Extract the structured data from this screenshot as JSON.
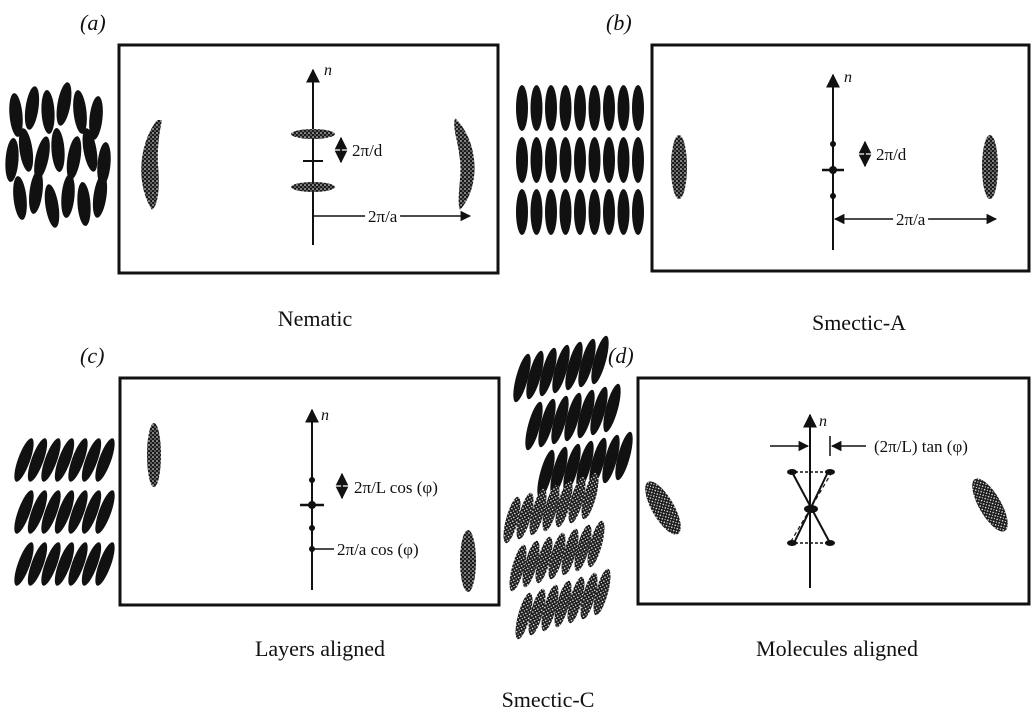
{
  "panels": {
    "a": {
      "letter": "(a)",
      "caption": "Nematic",
      "d_label": "2π/d",
      "a_label": "2π/a",
      "axis_label": "n"
    },
    "b": {
      "letter": "(b)",
      "caption": "Smectic-A",
      "d_label": "2π/d",
      "a_label": "2π/a",
      "axis_label": "n"
    },
    "c": {
      "letter": "(c)",
      "caption": "Layers aligned",
      "L_label": "2π/L cos (φ)",
      "a_label": "2π/a cos (φ)",
      "axis_label": "n"
    },
    "d": {
      "letter": "(d)",
      "caption": "Molecules aligned",
      "tan_label": "(2π/L) tan (φ)",
      "axis_label": "n"
    }
  },
  "bottom_caption": "Smectic-C"
}
